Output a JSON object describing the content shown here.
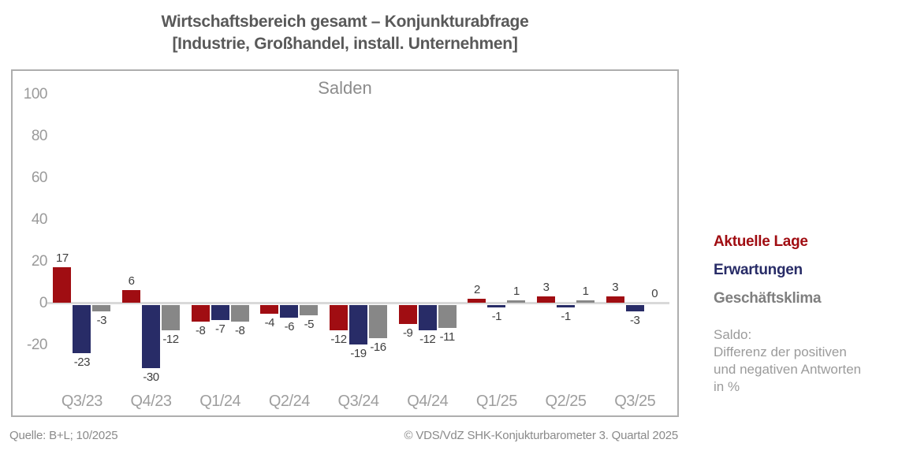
{
  "title": {
    "line1": "Wirtschaftsbereich gesamt – Konjunkturabfrage",
    "line2": "[Industrie, Großhandel, install. Unternehmen]"
  },
  "chart_data": {
    "type": "bar",
    "subtitle": "Salden",
    "categories": [
      "Q3/23",
      "Q4/23",
      "Q1/24",
      "Q2/24",
      "Q3/24",
      "Q4/24",
      "Q1/25",
      "Q2/25",
      "Q3/25"
    ],
    "series": [
      {
        "name": "Aktuelle Lage",
        "color": "#a00d12",
        "values": [
          17,
          6,
          -8,
          -4,
          -12,
          -9,
          2,
          3,
          3
        ]
      },
      {
        "name": "Erwartungen",
        "color": "#282c67",
        "values": [
          -23,
          -30,
          -7,
          -6,
          -19,
          -12,
          -1,
          -1,
          -3
        ]
      },
      {
        "name": "Geschäftsklima",
        "color": "#878787",
        "values": [
          -3,
          -12,
          -8,
          -5,
          -16,
          -11,
          1,
          1,
          0
        ]
      }
    ],
    "yticks": [
      100,
      80,
      60,
      40,
      20,
      0,
      -20
    ],
    "ylim": [
      -55,
      110
    ],
    "grid": false,
    "legend_position": "right",
    "value_labels": true
  },
  "legend": {
    "items": [
      {
        "label": "Aktuelle Lage",
        "color": "#a00d12"
      },
      {
        "label": "Erwartungen",
        "color": "#282c67"
      },
      {
        "label": "Geschäftsklima",
        "color": "#7f7f7f"
      }
    ],
    "note_lines": [
      "Saldo:",
      "Differenz der positiven",
      "und negativen Antworten",
      "in %"
    ]
  },
  "footer": {
    "source": "Quelle: B+L; 10/2025",
    "copyright": "© VDS/VdZ SHK-Konjukturbarometer 3. Quartal 2025"
  }
}
